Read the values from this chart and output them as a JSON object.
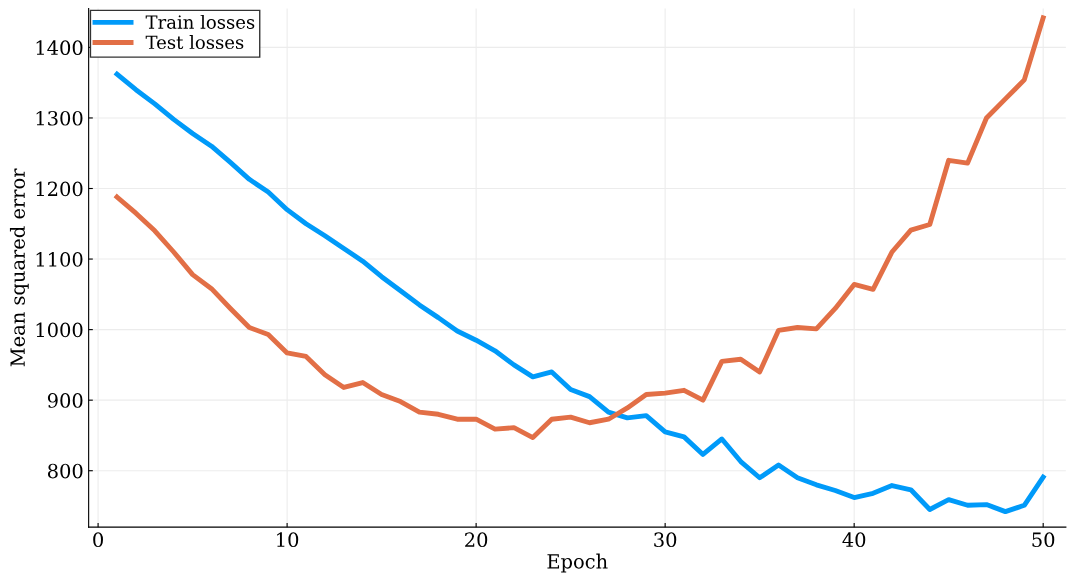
{
  "chart_data": {
    "type": "line",
    "xlabel": "Epoch",
    "ylabel": "Mean squared error",
    "x": [
      1,
      2,
      3,
      4,
      5,
      6,
      7,
      8,
      9,
      10,
      11,
      12,
      13,
      14,
      15,
      16,
      17,
      18,
      19,
      20,
      21,
      22,
      23,
      24,
      25,
      26,
      27,
      28,
      29,
      30,
      31,
      32,
      33,
      34,
      35,
      36,
      37,
      38,
      39,
      40,
      41,
      42,
      43,
      44,
      45,
      46,
      47,
      48,
      49,
      50
    ],
    "series": [
      {
        "name": "Train losses",
        "color": "#009af9",
        "values": [
          1362,
          1340,
          1320,
          1298,
          1278,
          1260,
          1237,
          1213,
          1195,
          1170,
          1150,
          1133,
          1115,
          1097,
          1075,
          1055,
          1035,
          1017,
          998,
          985,
          970,
          950,
          933,
          940,
          915,
          905,
          883,
          875,
          878,
          855,
          848,
          823,
          845,
          813,
          790,
          808,
          790,
          780,
          772,
          762,
          768,
          779,
          773,
          745,
          759,
          751,
          752,
          742,
          751,
          791
        ]
      },
      {
        "name": "Test losses",
        "color": "#e26f46",
        "values": [
          1188,
          1165,
          1140,
          1110,
          1078,
          1058,
          1030,
          1003,
          993,
          967,
          962,
          936,
          918,
          925,
          908,
          898,
          883,
          880,
          873,
          873,
          859,
          861,
          847,
          873,
          876,
          868,
          873,
          889,
          908,
          910,
          914,
          900,
          955,
          958,
          940,
          999,
          1003,
          1001,
          1030,
          1064,
          1057,
          1110,
          1141,
          1149,
          1240,
          1236,
          1300,
          1327,
          1354,
          1442
        ]
      }
    ],
    "xlim": [
      -0.5,
      51.2
    ],
    "ylim": [
      720,
      1455
    ],
    "xticks": [
      0,
      10,
      20,
      30,
      40,
      50
    ],
    "yticks": [
      800,
      900,
      1000,
      1100,
      1200,
      1300,
      1400
    ],
    "grid": true,
    "legend": "top left",
    "marker": "none",
    "line_style": "solid"
  }
}
